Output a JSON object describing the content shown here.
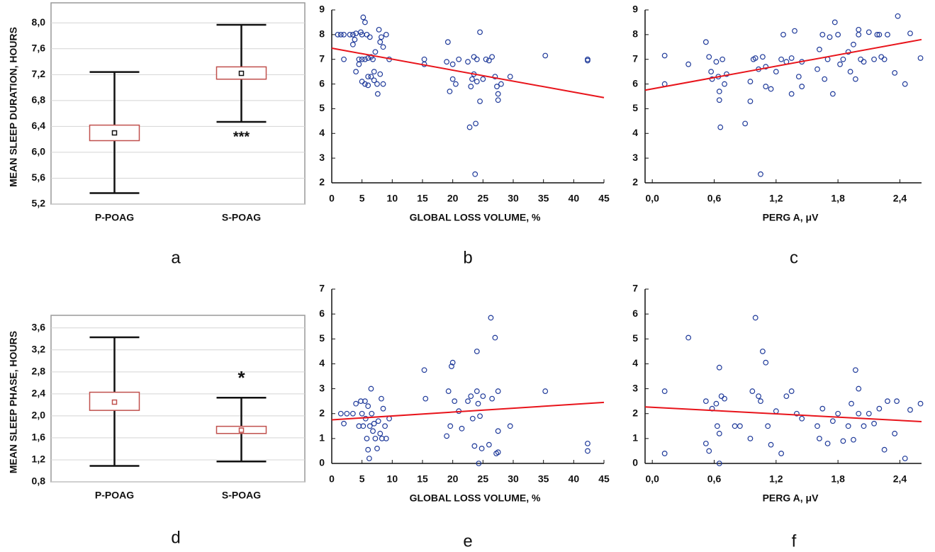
{
  "chart_data": [
    {
      "type": "box",
      "panel_label": "a",
      "ylabel": "MEAN SLEEP DURATION, HOURS",
      "categories": [
        "P-POAG",
        "S-POAG"
      ],
      "mean": [
        6.3,
        7.22
      ],
      "box_low": [
        6.18,
        7.13
      ],
      "box_high": [
        6.42,
        7.32
      ],
      "whisker_low": [
        5.37,
        6.47
      ],
      "whisker_high": [
        7.24,
        7.97
      ],
      "annotations": [
        null,
        "***"
      ],
      "box_color": "#c0504d",
      "whisker_color": "#111111",
      "mean_color": "#111111",
      "grid": true,
      "ylim": [
        5.2,
        8.2
      ],
      "yticks": [
        {
          "value": 5.2,
          "label": "5,2"
        },
        {
          "value": 5.6,
          "label": "5,6"
        },
        {
          "value": 6.0,
          "label": "6,0"
        },
        {
          "value": 6.4,
          "label": "6,4"
        },
        {
          "value": 6.8,
          "label": "6,8"
        },
        {
          "value": 7.2,
          "label": "7,2"
        },
        {
          "value": 7.6,
          "label": "7,6"
        },
        {
          "value": 8.0,
          "label": "8,0"
        }
      ]
    },
    {
      "type": "scatter",
      "panel_label": "b",
      "xlabel": "GLOBAL LOSS VOLUME, %",
      "color": "#1f3a9a",
      "trend_color": "#e8141b",
      "xlim": [
        0,
        45
      ],
      "xticks": [
        0,
        5,
        10,
        15,
        20,
        25,
        30,
        35,
        40,
        45
      ],
      "ylim": [
        2,
        9
      ],
      "yticks": [
        2,
        3,
        4,
        5,
        6,
        7,
        8,
        9
      ],
      "x": [
        1,
        1.5,
        2,
        2,
        3,
        3.5,
        4,
        3.5,
        3.8,
        4.5,
        4.8,
        5,
        5,
        5.2,
        5.5,
        5.5,
        5.8,
        6,
        6,
        6.3,
        6.5,
        6.8,
        7,
        7.2,
        7.5,
        7.6,
        7.8,
        8,
        8,
        8.2,
        8.5,
        8.5,
        9,
        9.5,
        4,
        4.5,
        5,
        5.5,
        6,
        6.5,
        7,
        15.3,
        15.3,
        19,
        19.2,
        19.5,
        20,
        20,
        20.5,
        21,
        22.5,
        22.8,
        23,
        23.2,
        23.5,
        23.5,
        23.7,
        23.8,
        24,
        24,
        24.5,
        24.5,
        25,
        25.5,
        26,
        26.5,
        27,
        27.3,
        27.5,
        27.5,
        28,
        29.5,
        35.3,
        42.3,
        42.3
      ],
      "values": [
        8,
        8,
        8,
        7,
        8,
        8,
        8.05,
        7.6,
        7.8,
        7,
        8.1,
        7,
        8,
        8.7,
        8.5,
        7,
        8,
        7.05,
        6.3,
        7.9,
        7.1,
        7,
        6.5,
        7.3,
        6,
        5.6,
        8.2,
        7.7,
        6.4,
        7.9,
        6,
        7.5,
        8,
        7,
        6.5,
        6.8,
        6.1,
        6,
        5.95,
        6.3,
        6.15,
        7,
        6.8,
        6.9,
        7.7,
        5.7,
        6.8,
        6.2,
        6,
        7,
        6.9,
        4.25,
        5.9,
        6.2,
        7.1,
        6.4,
        2.35,
        4.4,
        6.1,
        7,
        8.1,
        5.3,
        6.2,
        7,
        6.95,
        7.1,
        6.3,
        5.9,
        5.6,
        5.35,
        6,
        6.3,
        7.15,
        7,
        6.95
      ],
      "trendline": {
        "x": [
          0,
          45
        ],
        "values": [
          7.45,
          5.45
        ]
      }
    },
    {
      "type": "scatter",
      "panel_label": "c",
      "xlabel": "PERG A, μV",
      "color": "#1f3a9a",
      "trend_color": "#e8141b",
      "xlim": [
        -0.07,
        2.61
      ],
      "xticks": [
        {
          "value": 0,
          "label": "0,0"
        },
        {
          "value": 0.6,
          "label": "0,6"
        },
        {
          "value": 1.2,
          "label": "1,2"
        },
        {
          "value": 1.8,
          "label": "1,8"
        },
        {
          "value": 2.4,
          "label": "2,4"
        }
      ],
      "ylim": [
        2,
        9
      ],
      "yticks": [
        2,
        3,
        4,
        5,
        6,
        7,
        8,
        9
      ],
      "x": [
        0.12,
        0.12,
        0.35,
        0.52,
        0.55,
        0.57,
        0.58,
        0.62,
        0.64,
        0.65,
        0.65,
        0.66,
        0.68,
        0.7,
        0.72,
        0.9,
        0.95,
        0.95,
        0.98,
        1.0,
        1.03,
        1.05,
        1.07,
        1.1,
        1.1,
        1.15,
        1.2,
        1.25,
        1.27,
        1.3,
        1.35,
        1.35,
        1.38,
        1.42,
        1.45,
        1.45,
        1.6,
        1.62,
        1.65,
        1.67,
        1.7,
        1.72,
        1.75,
        1.77,
        1.8,
        1.82,
        1.85,
        1.9,
        1.92,
        1.95,
        1.97,
        2.0,
        2.0,
        2.02,
        2.05,
        2.1,
        2.15,
        2.18,
        2.2,
        2.22,
        2.25,
        2.28,
        2.35,
        2.38,
        2.45,
        2.5,
        2.6
      ],
      "values": [
        7.15,
        6.0,
        6.8,
        7.7,
        7.1,
        6.5,
        6.2,
        6.9,
        6.3,
        5.7,
        5.35,
        4.25,
        7.0,
        6.0,
        6.4,
        4.4,
        5.3,
        6.1,
        7.0,
        7.05,
        6.6,
        2.35,
        7.1,
        6.7,
        5.9,
        5.8,
        6.5,
        7.0,
        8.0,
        6.9,
        7.05,
        5.6,
        8.15,
        6.3,
        6.9,
        5.9,
        6.6,
        7.4,
        8.0,
        6.2,
        7.0,
        7.9,
        5.6,
        8.5,
        8.0,
        6.8,
        7.0,
        7.3,
        6.5,
        7.6,
        6.2,
        8.2,
        8.0,
        7.0,
        6.9,
        8.1,
        7.0,
        8.0,
        8.0,
        7.1,
        7.0,
        8.0,
        6.45,
        8.75,
        6.0,
        8.05,
        7.05
      ],
      "trendline": {
        "x": [
          -0.07,
          2.61
        ],
        "values": [
          5.75,
          7.8
        ]
      }
    },
    {
      "type": "box",
      "panel_label": "d",
      "ylabel": "MEAN SLEEP PHASE, HOURS",
      "categories": [
        "P-POAG",
        "S-POAG"
      ],
      "mean": [
        2.25,
        1.74
      ],
      "box_low": [
        2.1,
        1.68
      ],
      "box_high": [
        2.43,
        1.81
      ],
      "whisker_low": [
        1.09,
        1.17
      ],
      "whisker_high": [
        3.43,
        2.33
      ],
      "annotations": [
        null,
        "*"
      ],
      "box_color": "#c0504d",
      "whisker_color": "#111111",
      "mean_color": "#c0504d",
      "grid": true,
      "ylim": [
        0.8,
        3.7
      ],
      "yticks": [
        {
          "value": 0.8,
          "label": "0,8"
        },
        {
          "value": 1.2,
          "label": "1,2"
        },
        {
          "value": 1.6,
          "label": "1,6"
        },
        {
          "value": 2.0,
          "label": "2,0"
        },
        {
          "value": 2.4,
          "label": "2,4"
        },
        {
          "value": 2.8,
          "label": "2,8"
        },
        {
          "value": 3.2,
          "label": "3,2"
        },
        {
          "value": 3.6,
          "label": "3,6"
        }
      ]
    },
    {
      "type": "scatter",
      "panel_label": "e",
      "xlabel": "GLOBAL LOSS VOLUME, %",
      "color": "#1f3a9a",
      "trend_color": "#e8141b",
      "xlim": [
        0,
        45
      ],
      "xticks": [
        0,
        5,
        10,
        15,
        20,
        25,
        30,
        35,
        40,
        45
      ],
      "ylim": [
        0,
        7
      ],
      "yticks": [
        0,
        1,
        2,
        3,
        4,
        5,
        6,
        7
      ],
      "x": [
        1.5,
        2,
        2.5,
        3.5,
        4,
        4.5,
        4.8,
        5,
        5.2,
        5.5,
        5.6,
        5.8,
        6,
        6,
        6.2,
        6.3,
        6.5,
        6.6,
        6.8,
        7,
        7.2,
        7.5,
        7.7,
        8,
        8.2,
        8.3,
        8.5,
        8.8,
        9,
        9.5,
        15.3,
        15.5,
        19,
        19.3,
        19.6,
        19.8,
        20,
        20.3,
        21,
        21.5,
        22.5,
        23,
        23.3,
        23.6,
        24,
        24,
        24.2,
        24.3,
        24.5,
        24.8,
        25,
        26,
        26.3,
        26.5,
        27,
        27.2,
        27.5,
        27.5,
        27.5,
        29.5,
        35.3,
        42.3,
        42.3
      ],
      "values": [
        2,
        1.6,
        2,
        2,
        2.4,
        1.5,
        2.5,
        2,
        1.5,
        2.5,
        1.8,
        1.0,
        2.3,
        0.55,
        0.2,
        1.5,
        3.0,
        2.0,
        1.3,
        1.6,
        1.0,
        0.6,
        1.7,
        1.2,
        2.6,
        1.0,
        2.2,
        1.5,
        1.0,
        1.8,
        3.75,
        2.6,
        1.1,
        2.9,
        1.5,
        3.9,
        4.05,
        2.5,
        2.1,
        1.4,
        2.5,
        2.7,
        1.8,
        0.7,
        4.5,
        2.9,
        2.4,
        0,
        1.9,
        0.6,
        2.7,
        0.75,
        5.85,
        2.6,
        5.05,
        0.4,
        0.45,
        2.9,
        1.3,
        1.5,
        2.9,
        0.8,
        0.5
      ],
      "trendline": {
        "x": [
          0,
          45
        ],
        "values": [
          1.75,
          2.45
        ]
      }
    },
    {
      "type": "scatter",
      "panel_label": "f",
      "xlabel": "PERG A, μV",
      "color": "#1f3a9a",
      "trend_color": "#e8141b",
      "xlim": [
        -0.07,
        2.61
      ],
      "xticks": [
        {
          "value": 0,
          "label": "0,0"
        },
        {
          "value": 0.6,
          "label": "0,6"
        },
        {
          "value": 1.2,
          "label": "1,2"
        },
        {
          "value": 1.8,
          "label": "1,8"
        },
        {
          "value": 2.4,
          "label": "2,4"
        }
      ],
      "ylim": [
        0,
        7
      ],
      "yticks": [
        0,
        1,
        2,
        3,
        4,
        5,
        6,
        7
      ],
      "x": [
        0.12,
        0.12,
        0.35,
        0.52,
        0.52,
        0.55,
        0.58,
        0.62,
        0.63,
        0.65,
        0.65,
        0.65,
        0.67,
        0.7,
        0.8,
        0.85,
        0.95,
        0.97,
        1.0,
        1.03,
        1.05,
        1.07,
        1.1,
        1.12,
        1.15,
        1.2,
        1.25,
        1.3,
        1.35,
        1.4,
        1.45,
        1.6,
        1.62,
        1.65,
        1.7,
        1.75,
        1.8,
        1.85,
        1.9,
        1.93,
        1.95,
        1.97,
        2.0,
        2.0,
        2.05,
        2.1,
        2.15,
        2.2,
        2.25,
        2.28,
        2.35,
        2.37,
        2.45,
        2.5,
        2.6
      ],
      "values": [
        2.9,
        0.4,
        5.05,
        2.5,
        0.8,
        0.5,
        2.2,
        2.4,
        1.5,
        3.85,
        1.2,
        0,
        2.7,
        2.6,
        1.5,
        1.5,
        1.0,
        2.9,
        5.85,
        2.7,
        2.5,
        4.5,
        4.05,
        1.5,
        0.75,
        2.1,
        0.4,
        2.7,
        2.9,
        2.0,
        1.8,
        1.5,
        1.0,
        2.2,
        0.8,
        1.7,
        2.0,
        0.9,
        1.5,
        2.4,
        0.95,
        3.75,
        3.0,
        2.0,
        1.5,
        2.0,
        1.6,
        2.2,
        0.55,
        2.5,
        1.2,
        2.5,
        0.2,
        2.15,
        2.4
      ],
      "trendline": {
        "x": [
          -0.07,
          2.61
        ],
        "values": [
          2.27,
          1.68
        ]
      }
    }
  ]
}
